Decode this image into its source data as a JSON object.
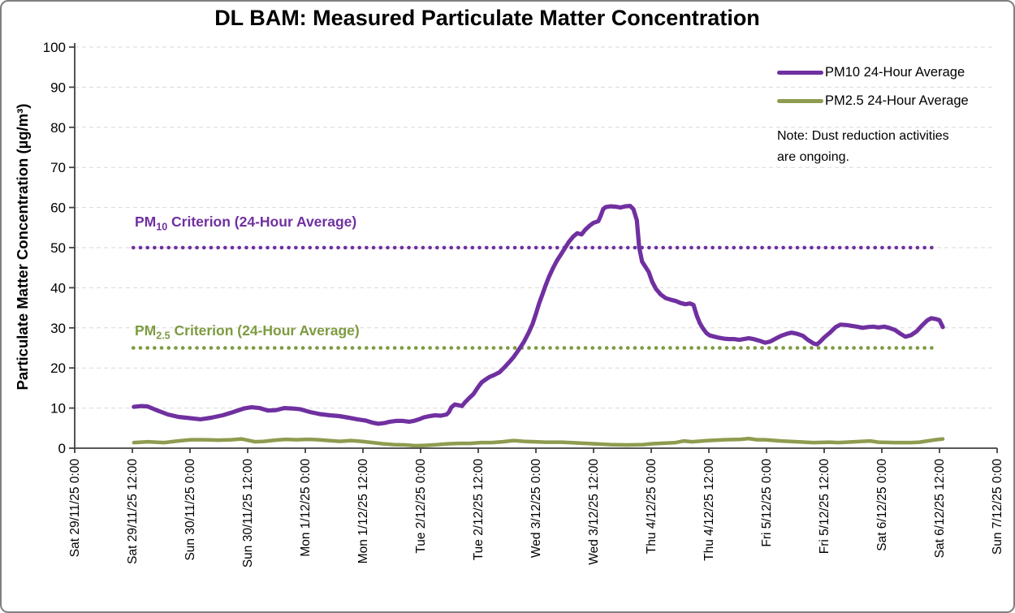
{
  "chart_data": {
    "type": "line",
    "title": "DL BAM: Measured Particulate Matter Concentration",
    "ylabel": "Particulate Matter Concentration (µg/m³)",
    "xlabel": "",
    "ylim": [
      0,
      100
    ],
    "y_tick_step": 10,
    "grid": true,
    "legend_position": "top-right",
    "note": "Note: Dust reduction activities are ongoing.",
    "note_line1": "Note: Dust reduction activities",
    "note_line2": "are ongoing.",
    "x_hours_per_tick": 12,
    "x_tick_labels": [
      "Sat 29/11/25 0:00",
      "Sat 29/11/25 12:00",
      "Sun 30/11/25 0:00",
      "Sun 30/11/25 12:00",
      "Mon 1/12/25 0:00",
      "Mon 1/12/25 12:00",
      "Tue 2/12/25 0:00",
      "Tue 2/12/25 12:00",
      "Wed 3/12/25 0:00",
      "Wed 3/12/25 12:00",
      "Thu 4/12/25 0:00",
      "Thu 4/12/25 12:00",
      "Fri 5/12/25 0:00",
      "Fri 5/12/25 12:00",
      "Sat 6/12/25 0:00",
      "Sat 6/12/25 12:00",
      "Sun 7/12/25 0:00"
    ],
    "criterion_lines": [
      {
        "label": "PM10 Criterion (24-Hour Average)",
        "label_prefix": "PM",
        "label_sub": "10",
        "label_rest": " Criterion (24-Hour Average)",
        "value": 50,
        "color": "#7030A0"
      },
      {
        "label": "PM2.5 Criterion (24-Hour Average)",
        "label_prefix": "PM",
        "label_sub": "2.5",
        "label_rest": " Criterion (24-Hour Average)",
        "value": 25,
        "color": "#7E9B41"
      }
    ],
    "series": [
      {
        "name": "PM10 24-Hour Average",
        "color": "#7030A0",
        "points": [
          [
            12.3,
            10.3
          ],
          [
            13.9,
            10.5
          ],
          [
            15.2,
            10.4
          ],
          [
            17.2,
            9.4
          ],
          [
            19.4,
            8.4
          ],
          [
            21.6,
            7.8
          ],
          [
            24,
            7.5
          ],
          [
            26.2,
            7.2
          ],
          [
            28.4,
            7.6
          ],
          [
            30.8,
            8.2
          ],
          [
            33,
            9
          ],
          [
            35.2,
            9.9
          ],
          [
            36.8,
            10.2
          ],
          [
            38.5,
            10
          ],
          [
            40.2,
            9.4
          ],
          [
            41.9,
            9.5
          ],
          [
            43.6,
            10
          ],
          [
            45.3,
            9.9
          ],
          [
            47,
            9.7
          ],
          [
            49,
            9
          ],
          [
            51,
            8.5
          ],
          [
            53.1,
            8.2
          ],
          [
            55.1,
            8
          ],
          [
            57.1,
            7.6
          ],
          [
            58.8,
            7.2
          ],
          [
            60.5,
            6.9
          ],
          [
            61.9,
            6.4
          ],
          [
            63.2,
            6.1
          ],
          [
            64.6,
            6.3
          ],
          [
            65.6,
            6.6
          ],
          [
            66.9,
            6.8
          ],
          [
            68.3,
            6.8
          ],
          [
            69.6,
            6.6
          ],
          [
            70.6,
            6.8
          ],
          [
            71.7,
            7.2
          ],
          [
            72.7,
            7.7
          ],
          [
            73.9,
            8
          ],
          [
            75,
            8.2
          ],
          [
            76.2,
            8.1
          ],
          [
            77.4,
            8.4
          ],
          [
            77.9,
            9
          ],
          [
            78.4,
            10.2
          ],
          [
            79.1,
            10.9
          ],
          [
            79.9,
            10.7
          ],
          [
            80.6,
            10.5
          ],
          [
            81.3,
            11.5
          ],
          [
            82.1,
            12.5
          ],
          [
            83,
            13.5
          ],
          [
            84,
            15.3
          ],
          [
            84.7,
            16.4
          ],
          [
            85.5,
            17.1
          ],
          [
            86.4,
            17.8
          ],
          [
            87.4,
            18.3
          ],
          [
            88.4,
            18.9
          ],
          [
            89.4,
            20.1
          ],
          [
            90.4,
            21.4
          ],
          [
            91.4,
            22.8
          ],
          [
            92.4,
            24.5
          ],
          [
            93.5,
            26.5
          ],
          [
            94.5,
            28.8
          ],
          [
            95.3,
            31
          ],
          [
            96,
            33.5
          ],
          [
            96.7,
            36.2
          ],
          [
            97.4,
            38.5
          ],
          [
            98,
            40.5
          ],
          [
            98.7,
            42.7
          ],
          [
            99.6,
            45
          ],
          [
            100.4,
            46.8
          ],
          [
            101.2,
            48.3
          ],
          [
            102.1,
            50
          ],
          [
            102.9,
            51.5
          ],
          [
            103.8,
            52.8
          ],
          [
            104.6,
            53.6
          ],
          [
            105.5,
            53.3
          ],
          [
            106.3,
            54.5
          ],
          [
            107.2,
            55.5
          ],
          [
            108,
            56.2
          ],
          [
            109,
            56.6
          ],
          [
            109.5,
            58
          ],
          [
            110,
            59.6
          ],
          [
            110.5,
            60.1
          ],
          [
            111.6,
            60.3
          ],
          [
            112.6,
            60.2
          ],
          [
            113.6,
            60
          ],
          [
            114.6,
            60.3
          ],
          [
            115.6,
            60.4
          ],
          [
            116.3,
            59.6
          ],
          [
            117,
            56.8
          ],
          [
            117.5,
            50
          ],
          [
            118.1,
            46.5
          ],
          [
            118.8,
            45.2
          ],
          [
            119.5,
            43.9
          ],
          [
            120.2,
            41.5
          ],
          [
            121,
            39.7
          ],
          [
            122,
            38.3
          ],
          [
            123,
            37.4
          ],
          [
            124.1,
            37
          ],
          [
            125.1,
            36.7
          ],
          [
            126.1,
            36.2
          ],
          [
            127.1,
            35.9
          ],
          [
            128.1,
            36.1
          ],
          [
            128.8,
            35.7
          ],
          [
            129.5,
            33
          ],
          [
            130.1,
            31.2
          ],
          [
            130.8,
            29.8
          ],
          [
            131.5,
            28.7
          ],
          [
            132.2,
            28.1
          ],
          [
            133.2,
            27.8
          ],
          [
            134.2,
            27.5
          ],
          [
            135.2,
            27.3
          ],
          [
            136.2,
            27.2
          ],
          [
            137.2,
            27.2
          ],
          [
            138.3,
            27
          ],
          [
            139.3,
            27.2
          ],
          [
            140.3,
            27.4
          ],
          [
            141.3,
            27.2
          ],
          [
            142.5,
            26.8
          ],
          [
            143.7,
            26.3
          ],
          [
            144.8,
            26.6
          ],
          [
            145.9,
            27.3
          ],
          [
            147,
            28
          ],
          [
            148.2,
            28.5
          ],
          [
            149.2,
            28.8
          ],
          [
            150.4,
            28.5
          ],
          [
            151.6,
            28
          ],
          [
            152.6,
            27
          ],
          [
            153.8,
            26.1
          ],
          [
            154.5,
            25.9
          ],
          [
            155.2,
            26.6
          ],
          [
            156,
            27.6
          ],
          [
            157.2,
            28.8
          ],
          [
            158.4,
            30.2
          ],
          [
            159.4,
            30.8
          ],
          [
            160.6,
            30.7
          ],
          [
            161.7,
            30.5
          ],
          [
            162.8,
            30.3
          ],
          [
            164,
            30
          ],
          [
            165.1,
            30.2
          ],
          [
            166.2,
            30.3
          ],
          [
            167.3,
            30.1
          ],
          [
            168.5,
            30.3
          ],
          [
            169.5,
            30
          ],
          [
            170.7,
            29.5
          ],
          [
            171.9,
            28.5
          ],
          [
            172.9,
            27.8
          ],
          [
            174.1,
            28.2
          ],
          [
            175.3,
            29.2
          ],
          [
            176.3,
            30.5
          ],
          [
            177.5,
            31.9
          ],
          [
            178.3,
            32.4
          ],
          [
            179.2,
            32.2
          ],
          [
            180,
            31.9
          ],
          [
            180.7,
            30.2
          ]
        ]
      },
      {
        "name": "PM2.5 24-Hour Average",
        "color": "#8D9C4F",
        "points": [
          [
            12.3,
            1.4
          ],
          [
            15.2,
            1.6
          ],
          [
            18.6,
            1.4
          ],
          [
            21.5,
            1.8
          ],
          [
            24.2,
            2.1
          ],
          [
            27,
            2.1
          ],
          [
            29.9,
            2
          ],
          [
            32.6,
            2.1
          ],
          [
            34.7,
            2.3
          ],
          [
            36.3,
            1.9
          ],
          [
            37.5,
            1.6
          ],
          [
            39.4,
            1.7
          ],
          [
            41.7,
            2
          ],
          [
            43.9,
            2.2
          ],
          [
            46.1,
            2.1
          ],
          [
            48.5,
            2.2
          ],
          [
            50.7,
            2.1
          ],
          [
            52.9,
            1.9
          ],
          [
            55.3,
            1.7
          ],
          [
            57.5,
            1.9
          ],
          [
            59.7,
            1.7
          ],
          [
            62,
            1.4
          ],
          [
            64.2,
            1.1
          ],
          [
            66.4,
            0.9
          ],
          [
            68.8,
            0.8
          ],
          [
            71,
            0.6
          ],
          [
            73.2,
            0.7
          ],
          [
            75.5,
            0.9
          ],
          [
            77.7,
            1.1
          ],
          [
            79.9,
            1.2
          ],
          [
            82.3,
            1.2
          ],
          [
            84.5,
            1.4
          ],
          [
            86.7,
            1.4
          ],
          [
            89.1,
            1.6
          ],
          [
            91.3,
            1.9
          ],
          [
            93.5,
            1.7
          ],
          [
            95.8,
            1.6
          ],
          [
            98,
            1.5
          ],
          [
            101.4,
            1.5
          ],
          [
            104.8,
            1.3
          ],
          [
            108.2,
            1.1
          ],
          [
            111.5,
            0.9
          ],
          [
            114.9,
            0.8
          ],
          [
            118.3,
            0.9
          ],
          [
            120,
            1.1
          ],
          [
            121.7,
            1.2
          ],
          [
            125.1,
            1.4
          ],
          [
            126.8,
            1.8
          ],
          [
            128.5,
            1.6
          ],
          [
            131.8,
            1.9
          ],
          [
            135.2,
            2.1
          ],
          [
            138.6,
            2.2
          ],
          [
            140.3,
            2.4
          ],
          [
            142,
            2.1
          ],
          [
            143.7,
            2.1
          ],
          [
            147,
            1.8
          ],
          [
            150.4,
            1.6
          ],
          [
            153.8,
            1.4
          ],
          [
            157.2,
            1.5
          ],
          [
            158.9,
            1.4
          ],
          [
            162.3,
            1.6
          ],
          [
            165.6,
            1.8
          ],
          [
            167.3,
            1.5
          ],
          [
            170.7,
            1.4
          ],
          [
            174.1,
            1.4
          ],
          [
            175.8,
            1.5
          ],
          [
            177.5,
            1.8
          ],
          [
            179.2,
            2.1
          ],
          [
            180.7,
            2.3
          ]
        ]
      }
    ]
  }
}
